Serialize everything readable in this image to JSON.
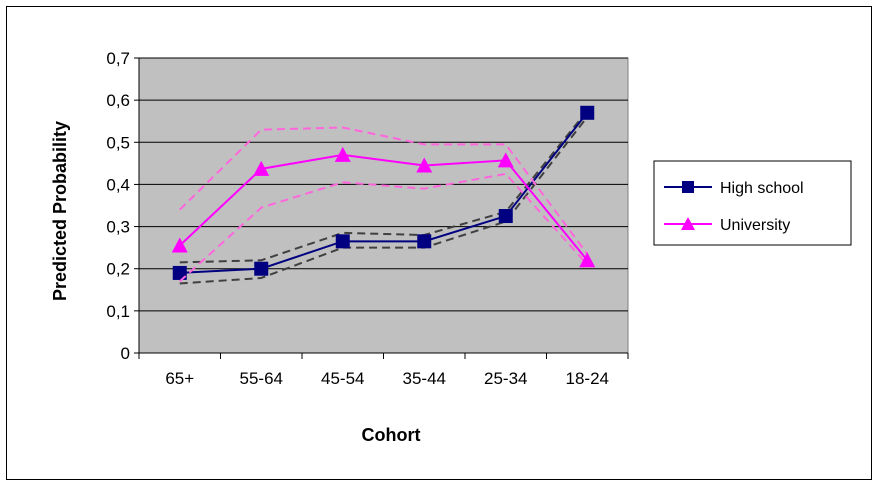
{
  "chart_data": {
    "type": "line",
    "categories": [
      "65+",
      "55-64",
      "45-54",
      "35-44",
      "25-34",
      "18-24"
    ],
    "xlabel": "Cohort",
    "ylabel": "Predicted Probability",
    "ylim": [
      0,
      0.7
    ],
    "yticks": [
      0,
      0.1,
      0.2,
      0.3,
      0.4,
      0.5,
      0.6,
      0.7
    ],
    "ytick_labels": [
      "0",
      "0,1",
      "0,2",
      "0,3",
      "0,4",
      "0,5",
      "0,6",
      "0,7"
    ],
    "grid": true,
    "legend_position": "right",
    "plot_background": "#c0c0c0",
    "series": [
      {
        "name": "High school",
        "color": "#000080",
        "marker": "square",
        "values": [
          0.19,
          0.2,
          0.265,
          0.265,
          0.325,
          0.57
        ],
        "upper": [
          0.215,
          0.22,
          0.285,
          0.28,
          0.335,
          0.575
        ],
        "lower": [
          0.165,
          0.178,
          0.25,
          0.25,
          0.312,
          0.56
        ],
        "band_color": "#404040"
      },
      {
        "name": "University",
        "color": "#ff00ff",
        "marker": "triangle",
        "values": [
          0.255,
          0.437,
          0.47,
          0.445,
          0.457,
          0.22
        ],
        "upper": [
          0.34,
          0.53,
          0.535,
          0.495,
          0.495,
          0.235
        ],
        "lower": [
          0.17,
          0.345,
          0.405,
          0.39,
          0.425,
          0.21
        ],
        "band_color": "#ff66dd"
      }
    ]
  }
}
